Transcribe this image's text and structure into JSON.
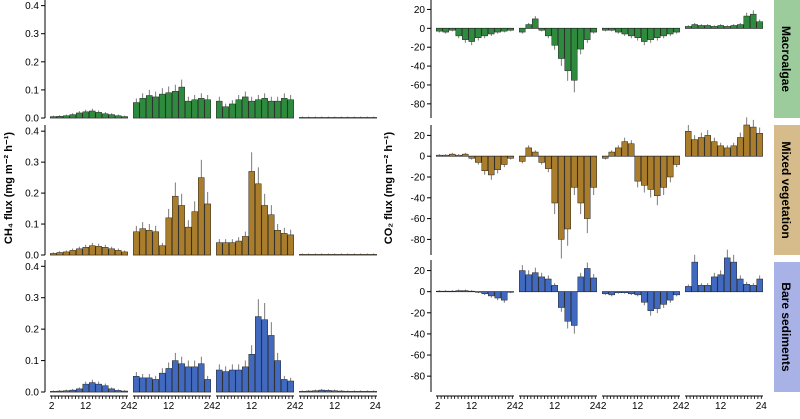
{
  "chart_data": {
    "type": "bar",
    "x_ticks": [
      "2",
      "12",
      "24"
    ],
    "hours": [
      2,
      3,
      4,
      5,
      6,
      7,
      8,
      9,
      10,
      11,
      12,
      13,
      14,
      15,
      16,
      17,
      18,
      19,
      20,
      21,
      22,
      23,
      24
    ],
    "strips": [
      {
        "label": "Macroalgae",
        "color": "#2e8b3e",
        "strip_bg": "#9ccc9c"
      },
      {
        "label": "Mixed vegetation",
        "color": "#a97d2c",
        "strip_bg": "#d6bc8a"
      },
      {
        "label": "Bare sediments",
        "color": "#4169bf",
        "strip_bg": "#a9b2e6"
      }
    ],
    "ch4": {
      "ylabel": "CH₄ flux (mg m⁻² h⁻¹)",
      "ylim": [
        0,
        0.42
      ],
      "yticks": [
        "0.0",
        "0.1",
        "0.2",
        "0.3",
        "0.4"
      ],
      "panels": [
        [
          [
            0.005,
            0.006,
            0.008,
            0.012,
            0.018,
            0.022,
            0.025,
            0.02,
            0.015,
            0.012,
            0.008,
            0.005
          ],
          [
            0.055,
            0.07,
            0.08,
            0.075,
            0.085,
            0.09,
            0.095,
            0.11,
            0.06,
            0.065,
            0.07,
            0.065
          ],
          [
            0.06,
            0.04,
            0.05,
            0.065,
            0.075,
            0.06,
            0.065,
            0.07,
            0.06,
            0.06,
            0.07,
            0.065
          ],
          [
            0.002,
            0.002,
            0.002,
            0.002,
            0.002,
            0.002,
            0.002,
            0.002,
            0.002,
            0.002,
            0.002,
            0.002
          ]
        ],
        [
          [
            0.005,
            0.008,
            0.01,
            0.015,
            0.02,
            0.025,
            0.03,
            0.028,
            0.025,
            0.02,
            0.015,
            0.01
          ],
          [
            0.075,
            0.085,
            0.08,
            0.075,
            0.03,
            0.12,
            0.19,
            0.16,
            0.09,
            0.14,
            0.25,
            0.165
          ],
          [
            0.04,
            0.04,
            0.04,
            0.045,
            0.06,
            0.27,
            0.23,
            0.16,
            0.13,
            0.08,
            0.07,
            0.065
          ],
          [
            0.002,
            0.002,
            0.002,
            0.002,
            0.002,
            0.002,
            0.002,
            0.002,
            0.002,
            0.002,
            0.002,
            0.002
          ]
        ],
        [
          [
            0.002,
            0.003,
            0.004,
            0.006,
            0.01,
            0.025,
            0.03,
            0.025,
            0.02,
            0.01,
            0.005,
            0.003
          ],
          [
            0.05,
            0.045,
            0.045,
            0.04,
            0.06,
            0.075,
            0.1,
            0.09,
            0.08,
            0.08,
            0.09,
            0.04
          ],
          [
            0.07,
            0.065,
            0.07,
            0.07,
            0.08,
            0.12,
            0.24,
            0.23,
            0.18,
            0.1,
            0.04,
            0.035
          ],
          [
            0.002,
            0.003,
            0.004,
            0.006,
            0.005,
            0.004,
            0.003,
            0.002,
            0.002,
            0.002,
            0.002,
            0.002
          ]
        ]
      ]
    },
    "co2": {
      "ylabel": "CO₂ flux (mg m⁻² h⁻¹)",
      "ylim": [
        -95,
        30
      ],
      "yticks": [
        "20",
        "0",
        "-20",
        "-40",
        "-60",
        "-80"
      ],
      "panels": [
        [
          [
            -3,
            -4,
            -2,
            -8,
            -12,
            -14,
            -10,
            -8,
            -6,
            -4,
            -3,
            -2
          ],
          [
            -4,
            4,
            10,
            -2,
            -8,
            -18,
            -32,
            -45,
            -55,
            -22,
            -12,
            -4
          ],
          [
            -2,
            -2,
            -4,
            -6,
            -8,
            -10,
            -14,
            -12,
            -10,
            -8,
            -6,
            -4
          ],
          [
            2,
            4,
            3,
            3,
            2,
            3,
            2,
            3,
            4,
            13,
            15,
            7
          ]
        ],
        [
          [
            1,
            1,
            2,
            1,
            2,
            -2,
            -6,
            -14,
            -18,
            -13,
            -8,
            -2
          ],
          [
            -5,
            8,
            4,
            -6,
            -12,
            -45,
            -80,
            -70,
            -30,
            -45,
            -60,
            -30
          ],
          [
            -2,
            4,
            8,
            14,
            12,
            -24,
            -28,
            -32,
            -38,
            -30,
            -20,
            -8
          ],
          [
            24,
            16,
            18,
            20,
            14,
            10,
            8,
            10,
            18,
            30,
            28,
            22
          ]
        ],
        [
          [
            0.5,
            0.5,
            0.5,
            1,
            1,
            0.5,
            -0.5,
            -2,
            -4,
            -6,
            -8,
            -0.5
          ],
          [
            20,
            16,
            18,
            14,
            12,
            6,
            -15,
            -28,
            -32,
            14,
            22,
            13
          ],
          [
            -2,
            -3,
            -1,
            -1,
            -2,
            -3,
            -10,
            -18,
            -16,
            -12,
            -8,
            -3
          ],
          [
            5,
            28,
            6,
            6,
            14,
            16,
            32,
            28,
            12,
            7,
            6,
            12
          ]
        ]
      ]
    }
  }
}
